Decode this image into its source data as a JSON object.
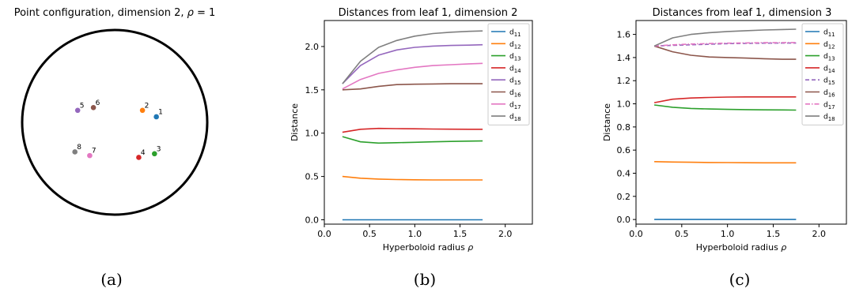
{
  "captions": [
    "(a)",
    "(b)",
    "(c)"
  ],
  "panel_a": {
    "title": "Point configuration, dimension 2, ",
    "title_rho": "ρ",
    "title_eq": " = 1",
    "points": [
      {
        "label": "1",
        "x": 0.45,
        "y": 0.06,
        "color": "#1f77b4"
      },
      {
        "label": "2",
        "x": 0.3,
        "y": 0.13,
        "color": "#ff7f0e"
      },
      {
        "label": "3",
        "x": 0.43,
        "y": -0.34,
        "color": "#2ca02c"
      },
      {
        "label": "4",
        "x": 0.26,
        "y": -0.38,
        "color": "#d62728"
      },
      {
        "label": "5",
        "x": -0.4,
        "y": 0.13,
        "color": "#9467bd"
      },
      {
        "label": "6",
        "x": -0.23,
        "y": 0.16,
        "color": "#8c564b"
      },
      {
        "label": "7",
        "x": -0.27,
        "y": -0.36,
        "color": "#e377c2"
      },
      {
        "label": "8",
        "x": -0.43,
        "y": -0.32,
        "color": "#7f7f7f"
      }
    ]
  },
  "chart_data": [
    {
      "type": "line",
      "title": "Distances from leaf 1, dimension 2",
      "xlabel": "Hyperboloid radius ",
      "xlabel_rho": "ρ",
      "ylabel": "Distance",
      "xlim": [
        0.0,
        2.3
      ],
      "ylim": [
        -0.05,
        2.3
      ],
      "xticks": [
        0.0,
        0.5,
        1.0,
        1.5,
        2.0
      ],
      "xtick_labels": [
        "0.0",
        "0.5",
        "1.0",
        "1.5",
        "2.0"
      ],
      "yticks": [
        0.0,
        0.5,
        1.0,
        1.5,
        2.0
      ],
      "ytick_labels": [
        "0.0",
        "0.5",
        "1.0",
        "1.5",
        "2.0"
      ],
      "legend_position": "top-right",
      "x": [
        0.2,
        0.4,
        0.6,
        0.8,
        1.0,
        1.2,
        1.4,
        1.6,
        1.75
      ],
      "series": [
        {
          "name": "d",
          "sub": "11",
          "color": "#1f77b4",
          "dash": "",
          "values": [
            0.0,
            0.0,
            0.0,
            0.0,
            0.0,
            0.0,
            0.0,
            0.0,
            0.0
          ]
        },
        {
          "name": "d",
          "sub": "12",
          "color": "#ff7f0e",
          "dash": "",
          "values": [
            0.5,
            0.48,
            0.47,
            0.465,
            0.462,
            0.46,
            0.46,
            0.46,
            0.46
          ]
        },
        {
          "name": "d",
          "sub": "13",
          "color": "#2ca02c",
          "dash": "",
          "values": [
            0.96,
            0.9,
            0.885,
            0.89,
            0.895,
            0.9,
            0.905,
            0.908,
            0.91
          ]
        },
        {
          "name": "d",
          "sub": "14",
          "color": "#d62728",
          "dash": "",
          "values": [
            1.01,
            1.045,
            1.055,
            1.052,
            1.05,
            1.048,
            1.046,
            1.045,
            1.045
          ]
        },
        {
          "name": "d",
          "sub": "15",
          "color": "#9467bd",
          "dash": "",
          "values": [
            1.57,
            1.78,
            1.9,
            1.96,
            1.99,
            2.005,
            2.012,
            2.016,
            2.02
          ]
        },
        {
          "name": "d",
          "sub": "16",
          "color": "#8c564b",
          "dash": "",
          "values": [
            1.5,
            1.51,
            1.54,
            1.56,
            1.565,
            1.568,
            1.57,
            1.57,
            1.57
          ]
        },
        {
          "name": "d",
          "sub": "17",
          "color": "#e377c2",
          "dash": "",
          "values": [
            1.51,
            1.62,
            1.69,
            1.73,
            1.76,
            1.78,
            1.79,
            1.8,
            1.805
          ]
        },
        {
          "name": "d",
          "sub": "18",
          "color": "#7f7f7f",
          "dash": "",
          "values": [
            1.57,
            1.83,
            1.99,
            2.07,
            2.12,
            2.15,
            2.165,
            2.175,
            2.18
          ]
        }
      ]
    },
    {
      "type": "line",
      "title": "Distances from leaf 1, dimension 3",
      "xlabel": "Hyperboloid radius ",
      "xlabel_rho": "ρ",
      "ylabel": "Distance",
      "xlim": [
        0.0,
        2.3
      ],
      "ylim": [
        -0.04,
        1.72
      ],
      "xticks": [
        0.0,
        0.5,
        1.0,
        1.5,
        2.0
      ],
      "xtick_labels": [
        "0.0",
        "0.5",
        "1.0",
        "1.5",
        "2.0"
      ],
      "yticks": [
        0.0,
        0.2,
        0.4,
        0.6,
        0.8,
        1.0,
        1.2,
        1.4,
        1.6
      ],
      "ytick_labels": [
        "0.0",
        "0.2",
        "0.4",
        "0.6",
        "0.8",
        "1.0",
        "1.2",
        "1.4",
        "1.6"
      ],
      "legend_position": "top-right",
      "x": [
        0.2,
        0.4,
        0.6,
        0.8,
        1.0,
        1.2,
        1.4,
        1.6,
        1.75
      ],
      "series": [
        {
          "name": "d",
          "sub": "11",
          "color": "#1f77b4",
          "dash": "",
          "values": [
            0.0,
            0.0,
            0.0,
            0.0,
            0.0,
            0.0,
            0.0,
            0.0,
            0.0
          ]
        },
        {
          "name": "d",
          "sub": "12",
          "color": "#ff7f0e",
          "dash": "",
          "values": [
            0.5,
            0.497,
            0.495,
            0.493,
            0.492,
            0.491,
            0.49,
            0.49,
            0.49
          ]
        },
        {
          "name": "d",
          "sub": "13",
          "color": "#2ca02c",
          "dash": "",
          "values": [
            0.99,
            0.97,
            0.96,
            0.955,
            0.952,
            0.95,
            0.948,
            0.947,
            0.946
          ]
        },
        {
          "name": "d",
          "sub": "14",
          "color": "#d62728",
          "dash": "",
          "values": [
            1.01,
            1.04,
            1.05,
            1.055,
            1.058,
            1.06,
            1.06,
            1.06,
            1.06
          ]
        },
        {
          "name": "d",
          "sub": "15",
          "color": "#9467bd",
          "dash": "5,3",
          "values": [
            1.5,
            1.505,
            1.51,
            1.515,
            1.52,
            1.522,
            1.524,
            1.525,
            1.525
          ]
        },
        {
          "name": "d",
          "sub": "16",
          "color": "#8c564b",
          "dash": "",
          "values": [
            1.5,
            1.45,
            1.42,
            1.405,
            1.4,
            1.395,
            1.39,
            1.385,
            1.385
          ]
        },
        {
          "name": "d",
          "sub": "17",
          "color": "#e377c2",
          "dash": "6,2,1.5,2",
          "values": [
            1.5,
            1.51,
            1.517,
            1.521,
            1.524,
            1.526,
            1.528,
            1.529,
            1.53
          ]
        },
        {
          "name": "d",
          "sub": "18",
          "color": "#7f7f7f",
          "dash": "",
          "values": [
            1.5,
            1.57,
            1.6,
            1.615,
            1.625,
            1.632,
            1.638,
            1.642,
            1.645
          ]
        }
      ]
    }
  ]
}
